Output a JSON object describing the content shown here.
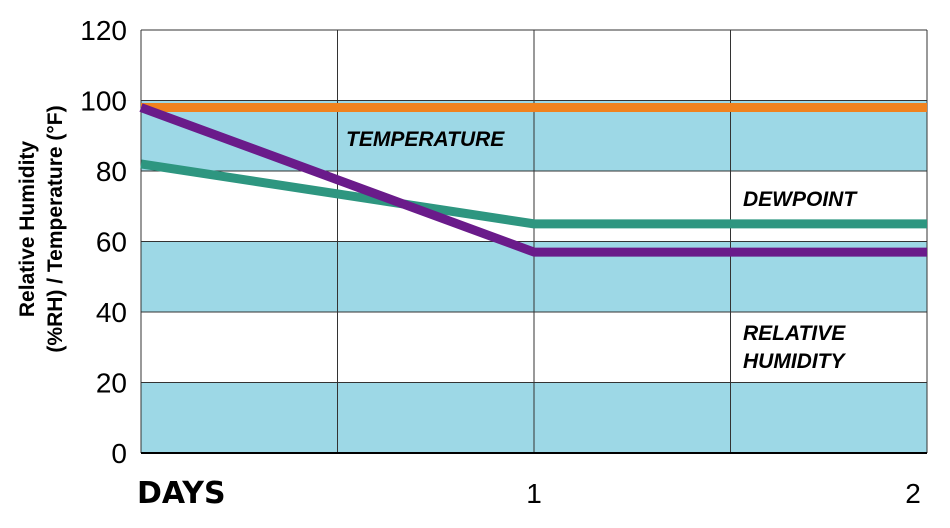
{
  "chart_data": {
    "type": "line",
    "xlabel": "DAYS",
    "ylabel_line1": "Relative Humidity",
    "ylabel_line2": "(%RH) / Temperature (°F)",
    "xlim": [
      0,
      2
    ],
    "ylim": [
      0,
      120
    ],
    "yticks": [
      0,
      20,
      40,
      60,
      80,
      100,
      120
    ],
    "xticks": [
      {
        "value": 1,
        "label": "1"
      },
      {
        "value": 2,
        "label": "2"
      }
    ],
    "grid": true,
    "bands": [
      {
        "y0": 0,
        "y1": 20,
        "color": "#9dd8e6"
      },
      {
        "y0": 40,
        "y1": 60,
        "color": "#9dd8e6"
      },
      {
        "y0": 80,
        "y1": 100,
        "color": "#9dd8e6"
      }
    ],
    "series": [
      {
        "key": "temperature",
        "color": "#f0821e",
        "points": [
          [
            0,
            98
          ],
          [
            2,
            98
          ]
        ]
      },
      {
        "key": "dewpoint",
        "color": "#2e9680",
        "points": [
          [
            0,
            82
          ],
          [
            1,
            65
          ],
          [
            2,
            65
          ]
        ]
      },
      {
        "key": "relative_humidity",
        "color": "#6a1b8a",
        "points": [
          [
            0,
            98
          ],
          [
            1,
            57
          ],
          [
            2,
            57
          ]
        ]
      }
    ],
    "annotations": [
      {
        "key": "temperature",
        "lines": [
          "TEMPERATURE"
        ]
      },
      {
        "key": "dewpoint",
        "lines": [
          "DEWPOINT"
        ]
      },
      {
        "key": "relative_humidity",
        "lines": [
          "RELATIVE",
          "HUMIDITY"
        ]
      }
    ]
  }
}
